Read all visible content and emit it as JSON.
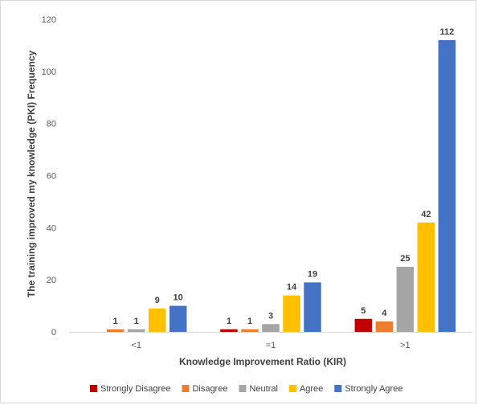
{
  "chart_data": {
    "type": "bar",
    "title": "",
    "xlabel": "Knowledge Improvement Ratio (KIR)",
    "ylabel": "The training improved my knowledge (PKI) Frequency",
    "categories": [
      "<1",
      "=1",
      ">1"
    ],
    "series": [
      {
        "name": "Strongly Disagree",
        "color": "#c00000",
        "values": [
          0,
          1,
          5
        ],
        "labels": [
          "",
          "1",
          "5"
        ]
      },
      {
        "name": "Disagree",
        "color": "#ed7d31",
        "values": [
          1,
          1,
          4
        ],
        "labels": [
          "1",
          "1",
          "4"
        ]
      },
      {
        "name": "Neutral",
        "color": "#a5a5a5",
        "values": [
          1,
          3,
          25
        ],
        "labels": [
          "1",
          "3",
          "25"
        ]
      },
      {
        "name": "Agree",
        "color": "#ffc000",
        "values": [
          9,
          14,
          42
        ],
        "labels": [
          "9",
          "14",
          "42"
        ]
      },
      {
        "name": "Strongly Agree",
        "color": "#4472c4",
        "values": [
          10,
          19,
          112
        ],
        "labels": [
          "10",
          "19",
          "112"
        ]
      }
    ],
    "ylim": [
      0,
      120
    ],
    "yticks": [
      "0",
      "20",
      "40",
      "60",
      "80",
      "100",
      "120"
    ],
    "grid": false,
    "legend": "bottom"
  }
}
